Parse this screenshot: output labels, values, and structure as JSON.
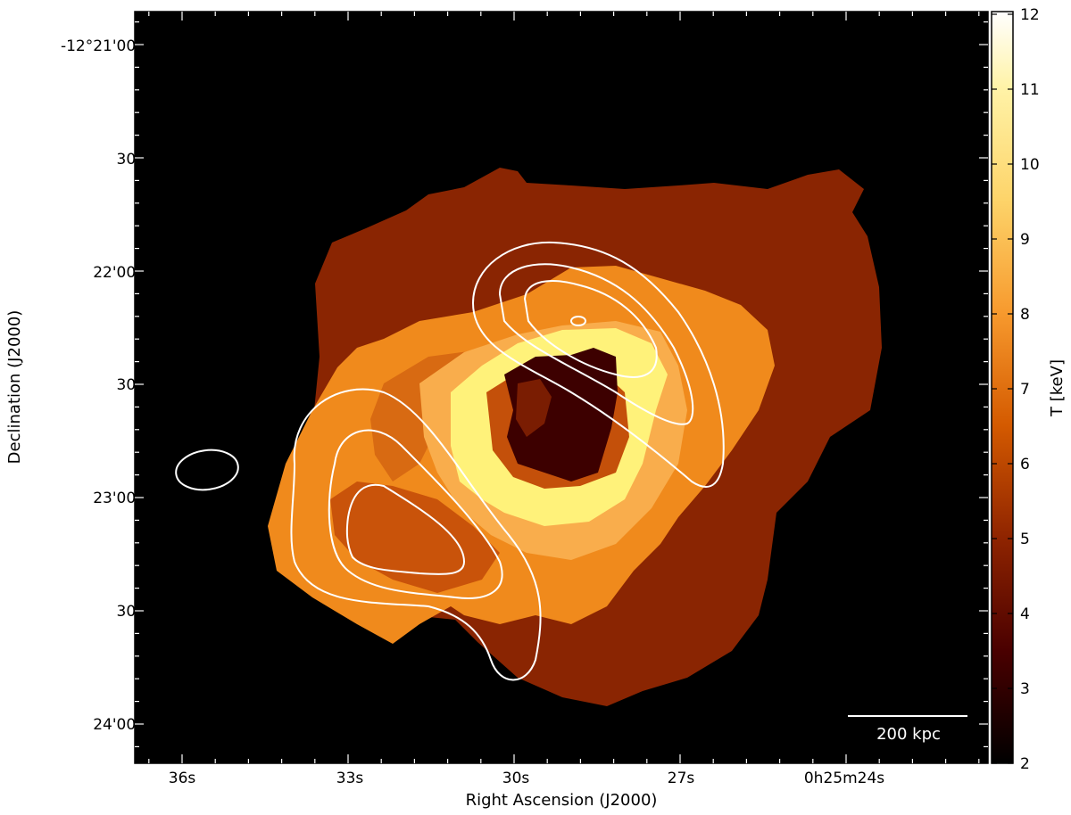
{
  "figure": {
    "x_axis_title": "Right Ascension (J2000)",
    "y_axis_title": "Declination (J2000)",
    "x_ticks": [
      "36s",
      "33s",
      "30s",
      "27s",
      "0h25m24s"
    ],
    "y_ticks": [
      "-12°21'00\"",
      "30\"",
      "22'00\"",
      "30\"",
      "23'00\"",
      "30\"",
      "24'00\""
    ],
    "scalebar_label": "200 kpc",
    "colorbar": {
      "title": "T [keV]",
      "ticks": [
        "2",
        "3",
        "4",
        "5",
        "6",
        "7",
        "8",
        "9",
        "10",
        "11",
        "12"
      ],
      "range": [
        2,
        12
      ],
      "colormap": "afmhot"
    },
    "contour_color": "#ffffff",
    "background_color": "#000000"
  }
}
